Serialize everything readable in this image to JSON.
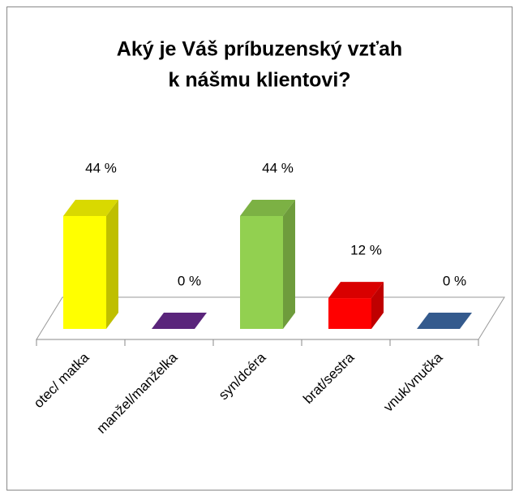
{
  "chart_data": {
    "type": "bar3d",
    "title": [
      "Aký je Váš príbuzenský vzťah",
      "k nášmu klientovi?"
    ],
    "categories": [
      "otec/ matka",
      "manžel/manželka",
      "syn/dcéra",
      "brat/sestra",
      "vnuk/vnučka"
    ],
    "values": [
      44,
      0,
      44,
      12,
      0
    ],
    "value_labels": [
      "44 %",
      "0 %",
      "44 %",
      "12 %",
      "0 %"
    ],
    "colors": [
      "#ffff00",
      "#6a2c91",
      "#92d050",
      "#ff0000",
      "#3d6aa6"
    ]
  }
}
